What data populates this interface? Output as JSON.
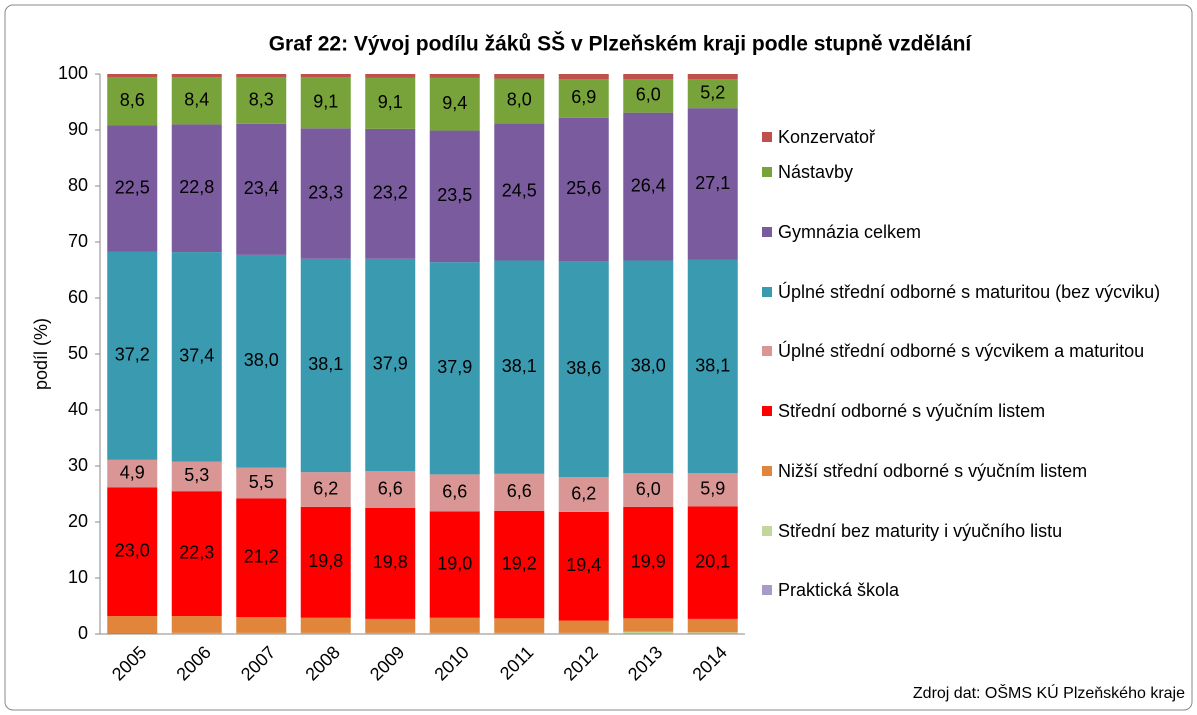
{
  "chart_data": {
    "type": "stacked_bar",
    "title": "Graf 22: Vývoj podílu žáků SŠ v Plzeňském kraji podle stupně vzdělání",
    "y_label": "podíl (%)",
    "source": "Zdroj dat: OŠMS KÚ Plzeňského kraje",
    "categories": [
      "2005",
      "2006",
      "2007",
      "2008",
      "2009",
      "2010",
      "2011",
      "2012",
      "2013",
      "2014"
    ],
    "ylim": [
      0,
      100
    ],
    "yticks": [
      0,
      10,
      20,
      30,
      40,
      50,
      60,
      70,
      80,
      90,
      100
    ],
    "grid": false,
    "legend": "right",
    "series": [
      {
        "name": "Praktická škola",
        "color": "#a99bc8",
        "values": [
          0.0,
          0.1,
          0.1,
          0.1,
          0.1,
          0.1,
          0.1,
          0.1,
          0.1,
          0.1
        ]
      },
      {
        "name": "Střední bez maturity i výučního listu",
        "color": "#c3d69b",
        "values": [
          0.0,
          0.1,
          0.1,
          0.1,
          0.1,
          0.1,
          0.1,
          0.1,
          0.3,
          0.2
        ]
      },
      {
        "name": "Nižší střední odborné s výučním listem",
        "color": "#e0853a",
        "values": [
          3.2,
          3.0,
          2.8,
          2.7,
          2.5,
          2.7,
          2.6,
          2.2,
          2.4,
          2.4
        ]
      },
      {
        "name": "Střední odborné s výučním listem",
        "color": "#ff0000",
        "values": [
          23.0,
          22.3,
          21.2,
          19.8,
          19.8,
          19.0,
          19.2,
          19.4,
          19.9,
          20.1
        ],
        "value_labels": [
          "23,0",
          "22,3",
          "21,2",
          "19,8",
          "19,8",
          "19,0",
          "19,2",
          "19,4",
          "19,9",
          "20,1"
        ]
      },
      {
        "name": "Úplné střední odborné s výcvikem a maturitou",
        "color": "#d99694",
        "values": [
          4.9,
          5.3,
          5.5,
          6.2,
          6.6,
          6.6,
          6.6,
          6.2,
          6.0,
          5.9
        ],
        "value_labels": [
          "4,9",
          "5,3",
          "5,5",
          "6,2",
          "6,6",
          "6,6",
          "6,6",
          "6,2",
          "6,0",
          "5,9"
        ]
      },
      {
        "name": "Úplné střední odborné s maturitou (bez výcviku)",
        "color": "#3a9ab0",
        "values": [
          37.2,
          37.4,
          38.0,
          38.1,
          37.9,
          37.9,
          38.1,
          38.6,
          38.0,
          38.1
        ],
        "value_labels": [
          "37,2",
          "37,4",
          "38,0",
          "38,1",
          "37,9",
          "37,9",
          "38,1",
          "38,6",
          "38,0",
          "38,1"
        ]
      },
      {
        "name": "Gymnázia celkem",
        "color": "#7a5c9e",
        "values": [
          22.5,
          22.8,
          23.4,
          23.3,
          23.2,
          23.5,
          24.5,
          25.6,
          26.4,
          27.1
        ],
        "value_labels": [
          "22,5",
          "22,8",
          "23,4",
          "23,3",
          "23,2",
          "23,5",
          "24,5",
          "25,6",
          "26,4",
          "27,1"
        ]
      },
      {
        "name": "Nástavby",
        "color": "#77a33a",
        "values": [
          8.6,
          8.4,
          8.3,
          9.1,
          9.1,
          9.4,
          8.0,
          6.9,
          6.0,
          5.2
        ],
        "value_labels": [
          "8,6",
          "8,4",
          "8,3",
          "9,1",
          "9,1",
          "9,4",
          "8,0",
          "6,9",
          "6,0",
          "5,2"
        ]
      },
      {
        "name": "Konzervatoř",
        "color": "#c0504d",
        "values": [
          0.6,
          0.6,
          0.6,
          0.6,
          0.7,
          0.7,
          0.8,
          0.9,
          0.9,
          0.9
        ]
      }
    ]
  }
}
